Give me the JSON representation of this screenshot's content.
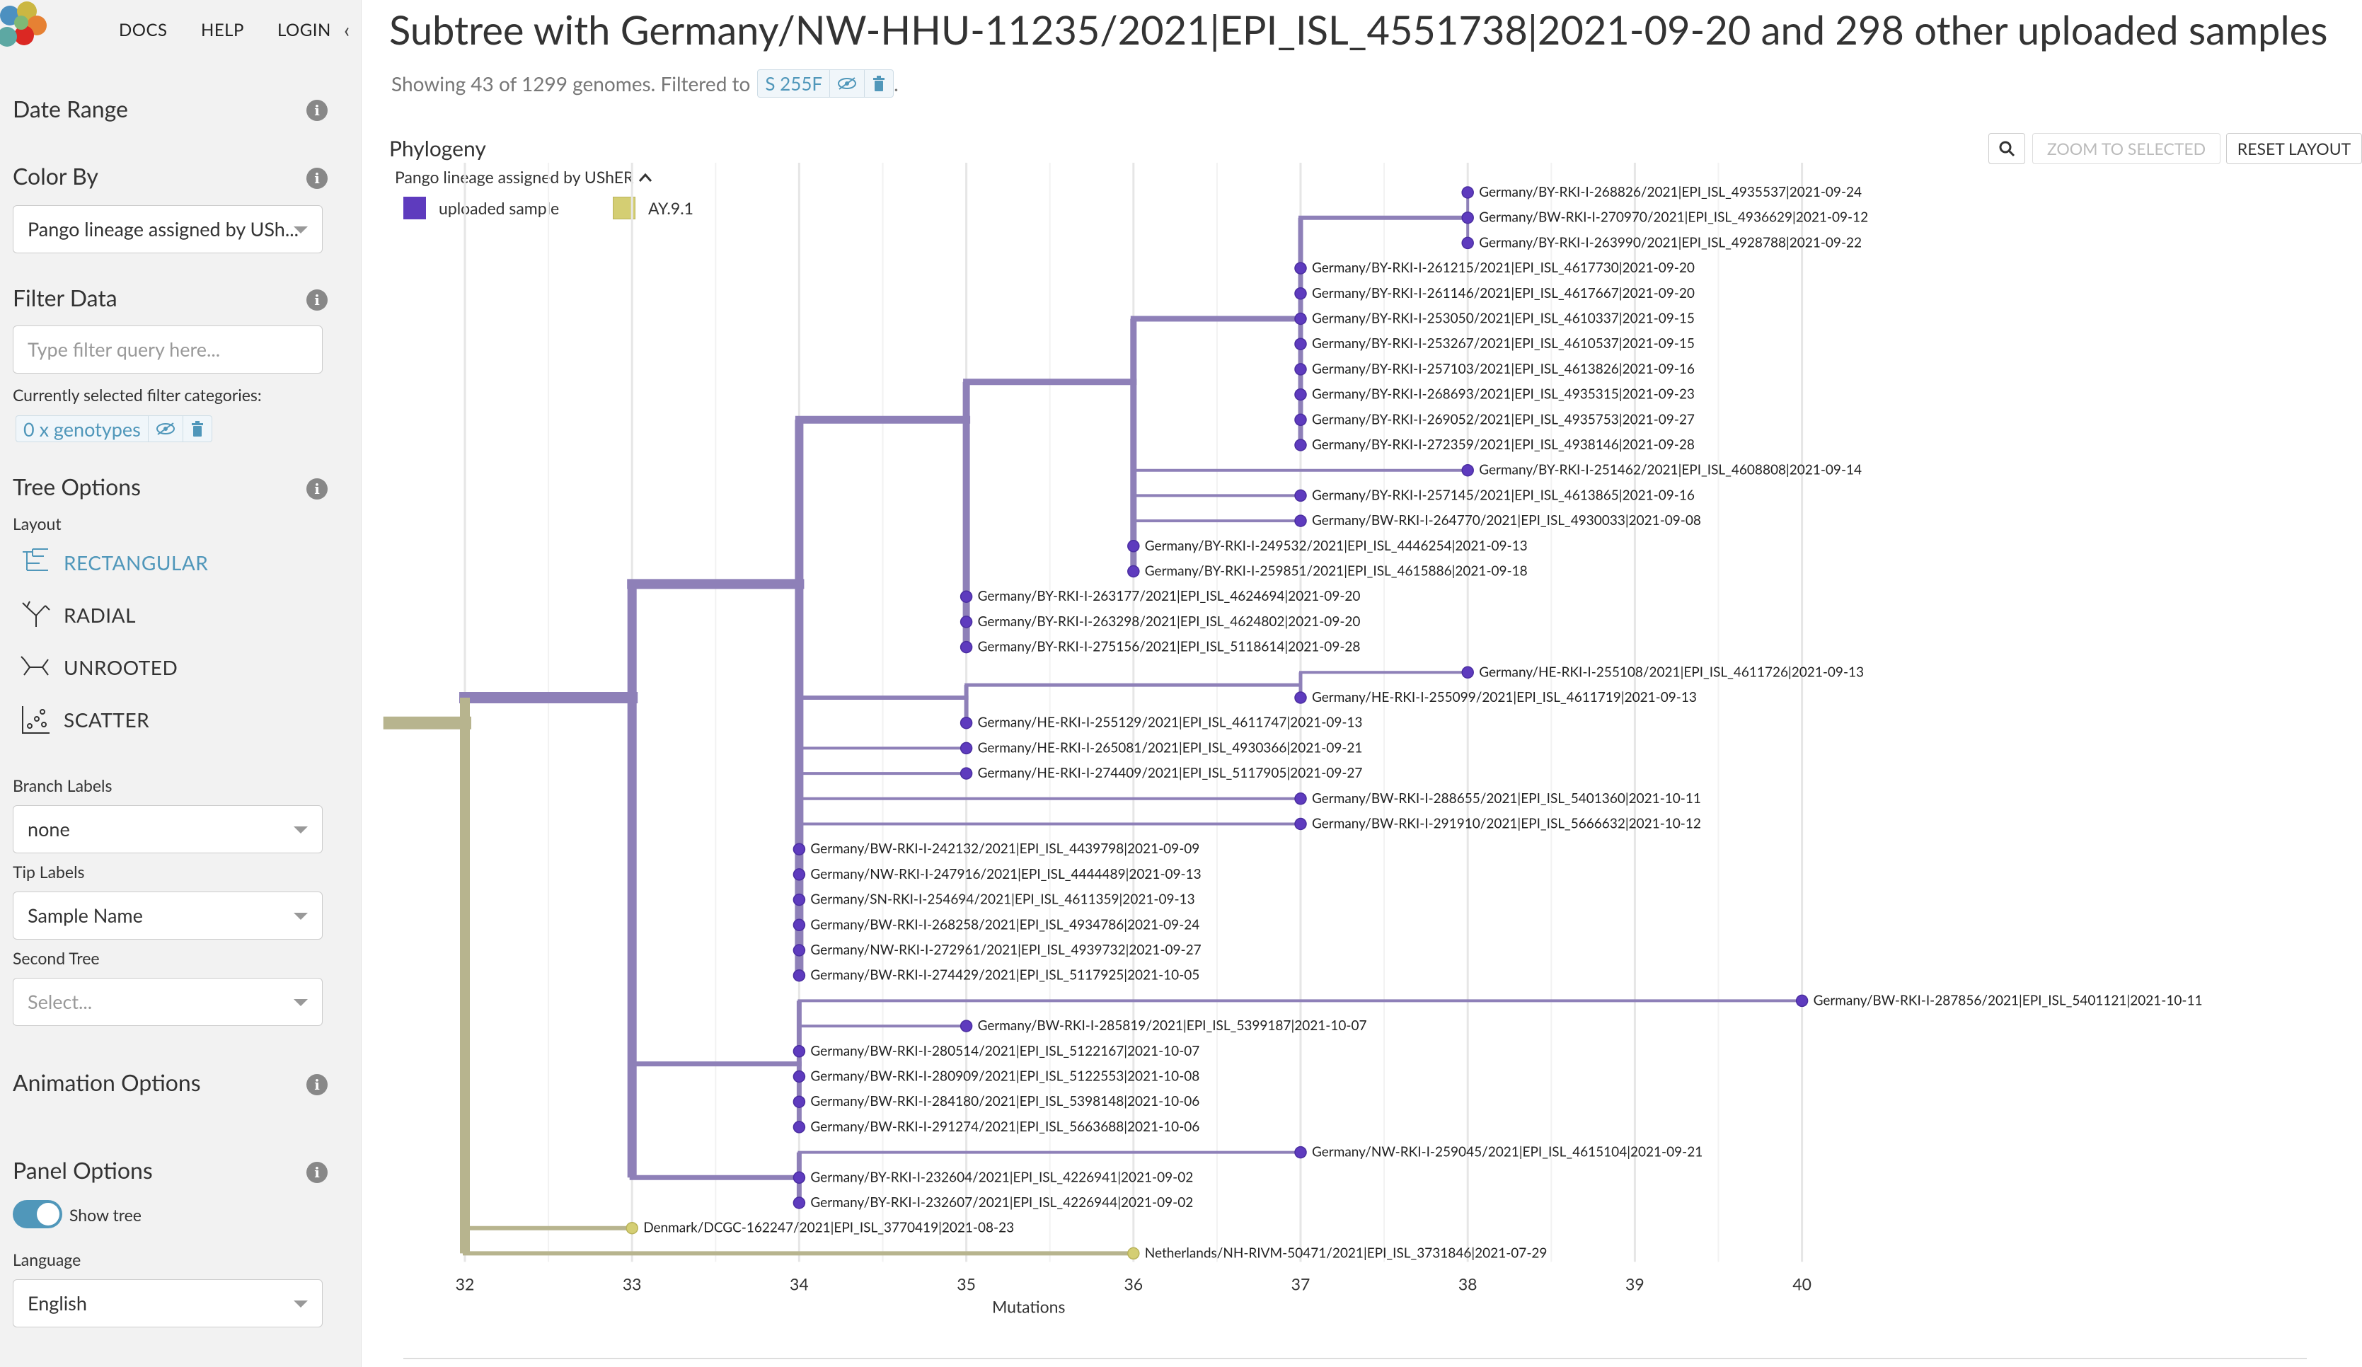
{
  "nav": {
    "docs": "DOCS",
    "help": "HELP",
    "login": "LOGIN"
  },
  "sidebar": {
    "date_range": "Date Range",
    "color_by": "Color By",
    "color_by_value": "Pango lineage assigned by USh...",
    "filter_data": "Filter Data",
    "filter_placeholder": "Type filter query here...",
    "filter_categories_label": "Currently selected filter categories:",
    "filter_chip": "0 x genotypes",
    "tree_options": "Tree Options",
    "layout_label": "Layout",
    "layouts": [
      "RECTANGULAR",
      "RADIAL",
      "UNROOTED",
      "SCATTER"
    ],
    "branch_labels_label": "Branch Labels",
    "branch_labels_value": "none",
    "tip_labels_label": "Tip Labels",
    "tip_labels_value": "Sample Name",
    "second_tree_label": "Second Tree",
    "second_tree_value": "Select...",
    "animation_options": "Animation Options",
    "panel_options": "Panel Options",
    "show_tree": "Show tree",
    "language_label": "Language",
    "language_value": "English"
  },
  "header": {
    "title": "Subtree with Germany/NW-HHU-11235/2021|EPI_ISL_4551738|2021-09-20 and 298 other uploaded samples",
    "subtitle": "Showing 43 of 1299 genomes. Filtered to",
    "filter_chip": "S 255F",
    "subtitle_end": "."
  },
  "panel": {
    "title": "Phylogeny",
    "zoom_to_selected": "ZOOM TO SELECTED",
    "reset_layout": "RESET LAYOUT",
    "legend_title": "Pango lineage assigned by UShER",
    "legend": [
      {
        "label": "uploaded sample",
        "color": "#5E3BBE"
      },
      {
        "label": "AY.9.1",
        "color": "#D4CE73"
      }
    ]
  },
  "colors": {
    "uploaded": "#5E3BBE",
    "uploaded_branch": "#8E80B8",
    "ay91": "#D4CE73",
    "ay91_branch": "#B7B48E",
    "accent": "#5097BA"
  },
  "axis": {
    "title": "Mutations",
    "ticks": [
      32,
      33,
      34,
      35,
      36,
      37,
      38,
      39,
      40
    ]
  },
  "tips": [
    {
      "label": "Germany/BY-RKI-I-268826/2021|EPI_ISL_4935537|2021-09-24",
      "mutations": 38,
      "group": "uploaded"
    },
    {
      "label": "Germany/BW-RKI-I-270970/2021|EPI_ISL_4936629|2021-09-12",
      "mutations": 38,
      "group": "uploaded"
    },
    {
      "label": "Germany/BY-RKI-I-263990/2021|EPI_ISL_4928788|2021-09-22",
      "mutations": 38,
      "group": "uploaded"
    },
    {
      "label": "Germany/BY-RKI-I-261215/2021|EPI_ISL_4617730|2021-09-20",
      "mutations": 37,
      "group": "uploaded"
    },
    {
      "label": "Germany/BY-RKI-I-261146/2021|EPI_ISL_4617667|2021-09-20",
      "mutations": 37,
      "group": "uploaded"
    },
    {
      "label": "Germany/BY-RKI-I-253050/2021|EPI_ISL_4610337|2021-09-15",
      "mutations": 37,
      "group": "uploaded"
    },
    {
      "label": "Germany/BY-RKI-I-253267/2021|EPI_ISL_4610537|2021-09-15",
      "mutations": 37,
      "group": "uploaded"
    },
    {
      "label": "Germany/BY-RKI-I-257103/2021|EPI_ISL_4613826|2021-09-16",
      "mutations": 37,
      "group": "uploaded"
    },
    {
      "label": "Germany/BY-RKI-I-268693/2021|EPI_ISL_4935315|2021-09-23",
      "mutations": 37,
      "group": "uploaded"
    },
    {
      "label": "Germany/BY-RKI-I-269052/2021|EPI_ISL_4935753|2021-09-27",
      "mutations": 37,
      "group": "uploaded"
    },
    {
      "label": "Germany/BY-RKI-I-272359/2021|EPI_ISL_4938146|2021-09-28",
      "mutations": 37,
      "group": "uploaded"
    },
    {
      "label": "Germany/BY-RKI-I-251462/2021|EPI_ISL_4608808|2021-09-14",
      "mutations": 38,
      "group": "uploaded"
    },
    {
      "label": "Germany/BY-RKI-I-257145/2021|EPI_ISL_4613865|2021-09-16",
      "mutations": 37,
      "group": "uploaded"
    },
    {
      "label": "Germany/BW-RKI-I-264770/2021|EPI_ISL_4930033|2021-09-08",
      "mutations": 37,
      "group": "uploaded"
    },
    {
      "label": "Germany/BY-RKI-I-249532/2021|EPI_ISL_4446254|2021-09-13",
      "mutations": 36,
      "group": "uploaded"
    },
    {
      "label": "Germany/BY-RKI-I-259851/2021|EPI_ISL_4615886|2021-09-18",
      "mutations": 36,
      "group": "uploaded"
    },
    {
      "label": "Germany/BY-RKI-I-263177/2021|EPI_ISL_4624694|2021-09-20",
      "mutations": 35,
      "group": "uploaded"
    },
    {
      "label": "Germany/BY-RKI-I-263298/2021|EPI_ISL_4624802|2021-09-20",
      "mutations": 35,
      "group": "uploaded"
    },
    {
      "label": "Germany/BY-RKI-I-275156/2021|EPI_ISL_5118614|2021-09-28",
      "mutations": 35,
      "group": "uploaded"
    },
    {
      "label": "Germany/HE-RKI-I-255108/2021|EPI_ISL_4611726|2021-09-13",
      "mutations": 38,
      "group": "uploaded"
    },
    {
      "label": "Germany/HE-RKI-I-255099/2021|EPI_ISL_4611719|2021-09-13",
      "mutations": 37,
      "group": "uploaded"
    },
    {
      "label": "Germany/HE-RKI-I-255129/2021|EPI_ISL_4611747|2021-09-13",
      "mutations": 35,
      "group": "uploaded"
    },
    {
      "label": "Germany/HE-RKI-I-265081/2021|EPI_ISL_4930366|2021-09-21",
      "mutations": 35,
      "group": "uploaded"
    },
    {
      "label": "Germany/HE-RKI-I-274409/2021|EPI_ISL_5117905|2021-09-27",
      "mutations": 35,
      "group": "uploaded"
    },
    {
      "label": "Germany/BW-RKI-I-288655/2021|EPI_ISL_5401360|2021-10-11",
      "mutations": 37,
      "group": "uploaded"
    },
    {
      "label": "Germany/BW-RKI-I-291910/2021|EPI_ISL_5666632|2021-10-12",
      "mutations": 37,
      "group": "uploaded"
    },
    {
      "label": "Germany/BW-RKI-I-242132/2021|EPI_ISL_4439798|2021-09-09",
      "mutations": 34,
      "group": "uploaded"
    },
    {
      "label": "Germany/NW-RKI-I-247916/2021|EPI_ISL_4444489|2021-09-13",
      "mutations": 34,
      "group": "uploaded"
    },
    {
      "label": "Germany/SN-RKI-I-254694/2021|EPI_ISL_4611359|2021-09-13",
      "mutations": 34,
      "group": "uploaded"
    },
    {
      "label": "Germany/BW-RKI-I-268258/2021|EPI_ISL_4934786|2021-09-24",
      "mutations": 34,
      "group": "uploaded"
    },
    {
      "label": "Germany/NW-RKI-I-272961/2021|EPI_ISL_4939732|2021-09-27",
      "mutations": 34,
      "group": "uploaded"
    },
    {
      "label": "Germany/BW-RKI-I-274429/2021|EPI_ISL_5117925|2021-10-05",
      "mutations": 34,
      "group": "uploaded"
    },
    {
      "label": "Germany/BW-RKI-I-287856/2021|EPI_ISL_5401121|2021-10-11",
      "mutations": 40,
      "group": "uploaded"
    },
    {
      "label": "Germany/BW-RKI-I-285819/2021|EPI_ISL_5399187|2021-10-07",
      "mutations": 35,
      "group": "uploaded"
    },
    {
      "label": "Germany/BW-RKI-I-280514/2021|EPI_ISL_5122167|2021-10-07",
      "mutations": 34,
      "group": "uploaded"
    },
    {
      "label": "Germany/BW-RKI-I-280909/2021|EPI_ISL_5122553|2021-10-08",
      "mutations": 34,
      "group": "uploaded"
    },
    {
      "label": "Germany/BW-RKI-I-284180/2021|EPI_ISL_5398148|2021-10-06",
      "mutations": 34,
      "group": "uploaded"
    },
    {
      "label": "Germany/BW-RKI-I-291274/2021|EPI_ISL_5663688|2021-10-06",
      "mutations": 34,
      "group": "uploaded"
    },
    {
      "label": "Germany/NW-RKI-I-259045/2021|EPI_ISL_4615104|2021-09-21",
      "mutations": 37,
      "group": "uploaded"
    },
    {
      "label": "Germany/BY-RKI-I-232604/2021|EPI_ISL_4226941|2021-09-02",
      "mutations": 34,
      "group": "uploaded"
    },
    {
      "label": "Germany/BY-RKI-I-232607/2021|EPI_ISL_4226944|2021-09-02",
      "mutations": 34,
      "group": "uploaded"
    },
    {
      "label": "Denmark/DCGC-162247/2021|EPI_ISL_3770419|2021-08-23",
      "mutations": 33,
      "group": "ay91"
    },
    {
      "label": "Netherlands/NH-RIVM-50471/2021|EPI_ISL_3731846|2021-07-29",
      "mutations": 36,
      "group": "ay91"
    }
  ],
  "branches": [
    {
      "from": 31.55,
      "to": 32,
      "tips": [
        0,
        42
      ],
      "group": "ay91",
      "w": 18
    },
    {
      "from": 32,
      "to": 33,
      "tips": [
        0,
        40
      ],
      "group": "uploaded",
      "w": 16
    },
    {
      "from": 32,
      "to": 33,
      "tips": [
        41,
        41
      ],
      "group": "ay91",
      "w": 6
    },
    {
      "from": 32,
      "to": 36,
      "tips": [
        42,
        42
      ],
      "group": "ay91",
      "w": 6
    },
    {
      "from": 33,
      "to": 34,
      "tips": [
        0,
        31
      ],
      "group": "uploaded",
      "w": 14
    },
    {
      "from": 33,
      "to": 34,
      "tips": [
        32,
        37
      ],
      "group": "uploaded",
      "w": 7
    },
    {
      "from": 33,
      "to": 34,
      "tips": [
        38,
        40
      ],
      "group": "uploaded",
      "w": 7
    },
    {
      "from": 34,
      "to": 35,
      "tips": [
        0,
        18
      ],
      "group": "uploaded",
      "w": 11
    },
    {
      "from": 34,
      "to": 35,
      "tips": [
        19,
        21
      ],
      "group": "uploaded",
      "w": 6
    },
    {
      "from": 34,
      "to": 35,
      "tips": [
        22,
        22
      ],
      "group": "uploaded",
      "w": 4
    },
    {
      "from": 34,
      "to": 35,
      "tips": [
        23,
        23
      ],
      "group": "uploaded",
      "w": 4
    },
    {
      "from": 34,
      "to": 37,
      "tips": [
        24,
        24
      ],
      "group": "uploaded",
      "w": 4
    },
    {
      "from": 34,
      "to": 37,
      "tips": [
        25,
        25
      ],
      "group": "uploaded",
      "w": 4
    },
    {
      "from": 34,
      "to": 34,
      "tips": [
        26,
        31
      ],
      "group": "uploaded",
      "w": 4
    },
    {
      "from": 34,
      "to": 40,
      "tips": [
        32,
        32
      ],
      "group": "uploaded",
      "w": 4
    },
    {
      "from": 34,
      "to": 35,
      "tips": [
        33,
        33
      ],
      "group": "uploaded",
      "w": 4
    },
    {
      "from": 34,
      "to": 34,
      "tips": [
        34,
        37
      ],
      "group": "uploaded",
      "w": 4
    },
    {
      "from": 34,
      "to": 37,
      "tips": [
        38,
        38
      ],
      "group": "uploaded",
      "w": 4
    },
    {
      "from": 34,
      "to": 34,
      "tips": [
        39,
        40
      ],
      "group": "uploaded",
      "w": 4
    },
    {
      "from": 35,
      "to": 36,
      "tips": [
        0,
        15
      ],
      "group": "uploaded",
      "w": 9
    },
    {
      "from": 35,
      "to": 35,
      "tips": [
        16,
        18
      ],
      "group": "uploaded",
      "w": 4
    },
    {
      "from": 35,
      "to": 37,
      "tips": [
        19,
        20
      ],
      "group": "uploaded",
      "w": 5
    },
    {
      "from": 35,
      "to": 35,
      "tips": [
        21,
        21
      ],
      "group": "uploaded",
      "w": 4
    },
    {
      "from": 36,
      "to": 37,
      "tips": [
        0,
        10
      ],
      "group": "uploaded",
      "w": 8
    },
    {
      "from": 36,
      "to": 38,
      "tips": [
        11,
        11
      ],
      "group": "uploaded",
      "w": 4
    },
    {
      "from": 36,
      "to": 37,
      "tips": [
        12,
        12
      ],
      "group": "uploaded",
      "w": 4
    },
    {
      "from": 36,
      "to": 37,
      "tips": [
        13,
        13
      ],
      "group": "uploaded",
      "w": 4
    },
    {
      "from": 36,
      "to": 36,
      "tips": [
        14,
        15
      ],
      "group": "uploaded",
      "w": 4
    },
    {
      "from": 37,
      "to": 38,
      "tips": [
        0,
        2
      ],
      "group": "uploaded",
      "w": 6
    },
    {
      "from": 37,
      "to": 37,
      "tips": [
        3,
        10
      ],
      "group": "uploaded",
      "w": 4
    },
    {
      "from": 37,
      "to": 38,
      "tips": [
        19,
        19
      ],
      "group": "uploaded",
      "w": 4
    },
    {
      "from": 37,
      "to": 37,
      "tips": [
        20,
        20
      ],
      "group": "uploaded",
      "w": 4
    },
    {
      "from": 38,
      "to": 38,
      "tips": [
        0,
        2
      ],
      "group": "uploaded",
      "w": 4
    }
  ]
}
